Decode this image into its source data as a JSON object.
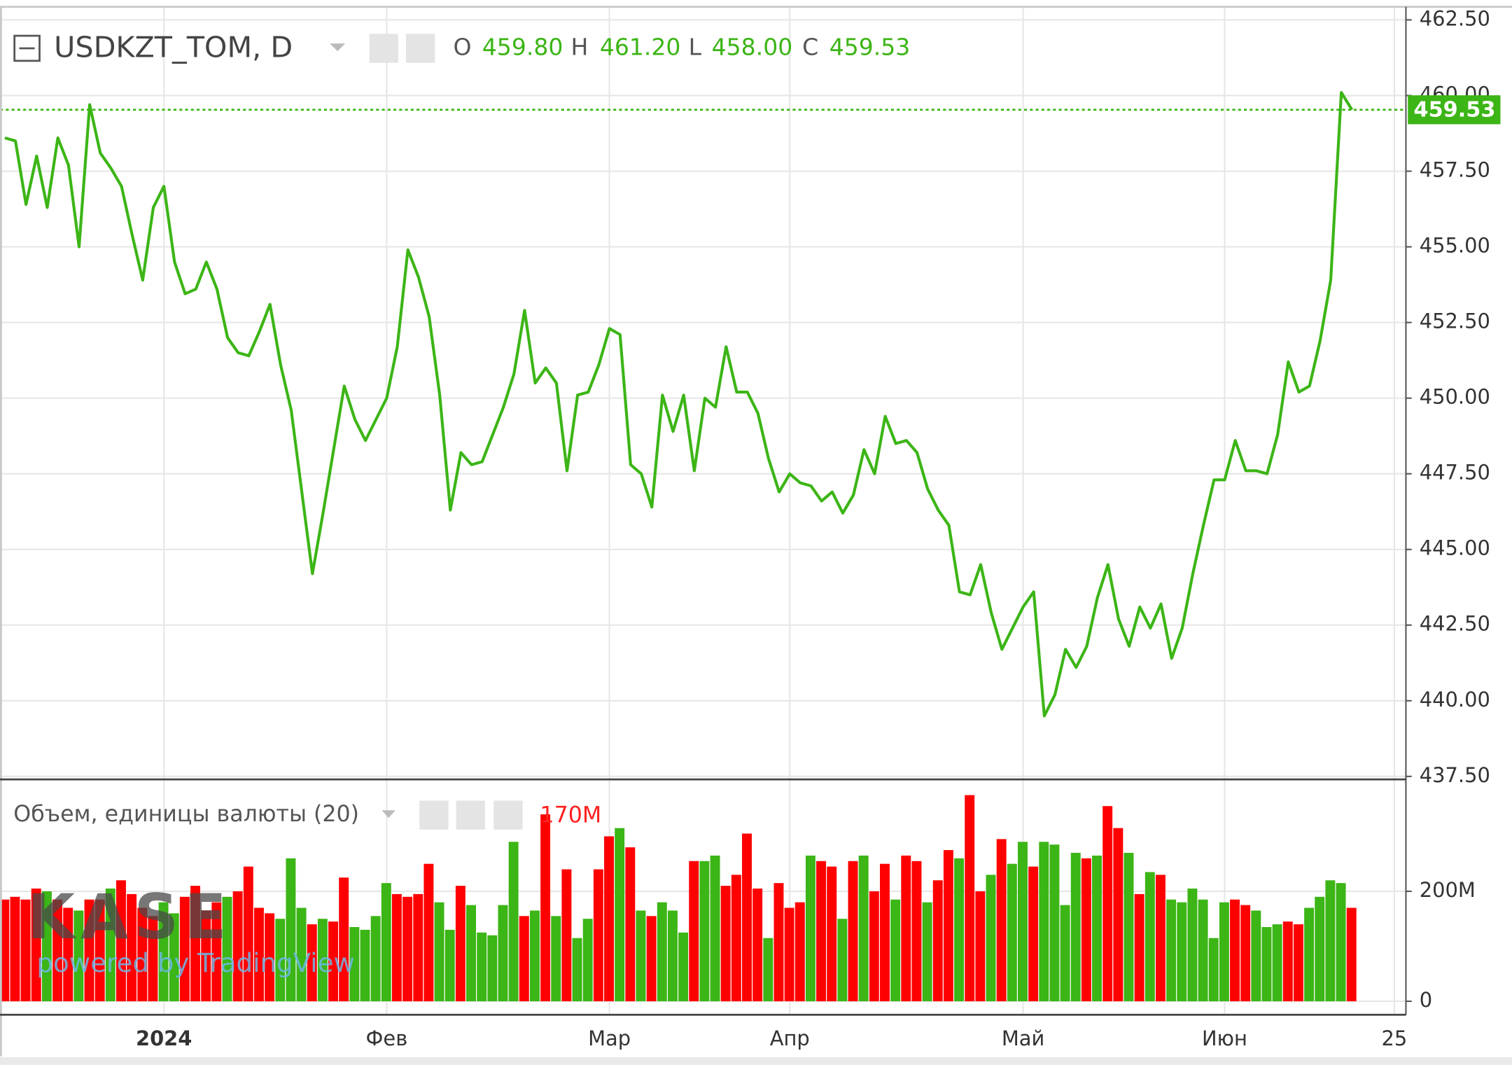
{
  "chart_data": [
    {
      "type": "line",
      "title": "USDKZT_TOM, D",
      "color": "#3cb516",
      "ohlc": [
        {
          "label": "O",
          "value": "459.80"
        },
        {
          "label": "H",
          "value": "461.20"
        },
        {
          "label": "L",
          "value": "458.00"
        },
        {
          "label": "C",
          "value": "459.53"
        }
      ],
      "categories": [
        null,
        null,
        null,
        null,
        null,
        null,
        null,
        null,
        null,
        null,
        null,
        null,
        null,
        null,
        null,
        "2024",
        null,
        null,
        null,
        null,
        null,
        null,
        null,
        null,
        null,
        null,
        null,
        null,
        null,
        null,
        null,
        null,
        null,
        null,
        null,
        null,
        "Фев",
        null,
        null,
        null,
        null,
        null,
        null,
        null,
        null,
        null,
        null,
        null,
        null,
        null,
        null,
        null,
        null,
        null,
        null,
        null,
        null,
        "Мар",
        null,
        null,
        null,
        null,
        null,
        null,
        null,
        null,
        null,
        null,
        null,
        null,
        null,
        null,
        null,
        null,
        "Апр",
        null,
        null,
        null,
        null,
        null,
        null,
        null,
        null,
        null,
        null,
        null,
        null,
        null,
        null,
        null,
        null,
        null,
        null,
        null,
        null,
        null,
        "Май",
        null,
        null,
        null,
        null,
        null,
        null,
        null,
        null,
        null,
        null,
        null,
        null,
        null,
        null,
        null,
        null,
        null,
        null,
        "Июн",
        null,
        null,
        null,
        null,
        null,
        null,
        null,
        null,
        null,
        null,
        null,
        null,
        null,
        null,
        null,
        "25"
      ],
      "values": [
        458.6,
        458.5,
        456.4,
        458.0,
        456.3,
        458.6,
        457.7,
        455.0,
        459.7,
        458.1,
        457.6,
        457.0,
        455.4,
        453.9,
        456.3,
        457.0,
        454.5,
        453.45,
        453.6,
        454.5,
        453.6,
        452.0,
        451.5,
        451.4,
        452.2,
        453.1,
        451.1,
        449.6,
        446.9,
        444.2,
        446.2,
        448.3,
        450.4,
        449.3,
        448.6,
        449.3,
        450.0,
        451.7,
        454.9,
        454.0,
        452.7,
        450.1,
        446.3,
        448.2,
        447.8,
        447.9,
        448.8,
        449.7,
        450.8,
        452.9,
        450.5,
        451.0,
        450.5,
        447.6,
        450.1,
        450.2,
        451.1,
        452.3,
        452.1,
        447.8,
        447.5,
        446.4,
        450.1,
        448.9,
        450.1,
        447.6,
        450.0,
        449.7,
        451.7,
        450.2,
        450.2,
        449.5,
        448.0,
        446.9,
        447.5,
        447.2,
        447.1,
        446.6,
        446.9,
        446.2,
        446.8,
        448.3,
        447.5,
        449.4,
        448.5,
        448.6,
        448.2,
        447.0,
        446.3,
        445.8,
        443.6,
        443.5,
        444.5,
        442.9,
        441.7,
        442.4,
        443.1,
        443.6,
        439.5,
        440.2,
        441.7,
        441.1,
        441.8,
        443.4,
        444.5,
        442.7,
        441.8,
        443.1,
        442.4,
        443.2,
        441.4,
        442.4,
        444.2,
        445.8,
        447.3,
        447.3,
        448.6,
        447.6,
        447.6,
        447.5,
        448.8,
        451.2,
        450.2,
        450.4,
        451.9,
        453.9,
        460.1,
        459.53,
        null,
        null,
        null,
        null
      ],
      "ylim": [
        437.4,
        462.9
      ],
      "yticks": [
        {
          "value": 437.5,
          "label": "437.50"
        },
        {
          "value": 440,
          "label": "440.00"
        },
        {
          "value": 442.5,
          "label": "442.50"
        },
        {
          "value": 445,
          "label": "445.00"
        },
        {
          "value": 447.5,
          "label": "447.50"
        },
        {
          "value": 450,
          "label": "450.00"
        },
        {
          "value": 452.5,
          "label": "452.50"
        },
        {
          "value": 455,
          "label": "455.00"
        },
        {
          "value": 457.5,
          "label": "457.50"
        },
        {
          "value": 460,
          "label": "460.00"
        },
        {
          "value": 462.5,
          "label": "462.50"
        }
      ],
      "grid": true
    },
    {
      "type": "bar",
      "title": "Объем, единицы валюты (20)",
      "header_value": "170M",
      "categories": [
        null,
        null,
        null,
        null,
        null,
        null,
        null,
        null,
        null,
        null,
        null,
        null,
        null,
        null,
        null,
        "2024",
        null,
        null,
        null,
        null,
        null,
        null,
        null,
        null,
        null,
        null,
        null,
        null,
        null,
        null,
        null,
        null,
        null,
        null,
        null,
        null,
        "Фев",
        null,
        null,
        null,
        null,
        null,
        null,
        null,
        null,
        null,
        null,
        null,
        null,
        null,
        null,
        null,
        null,
        null,
        null,
        null,
        null,
        "Мар",
        null,
        null,
        null,
        null,
        null,
        null,
        null,
        null,
        null,
        null,
        null,
        null,
        null,
        null,
        null,
        null,
        "Апр",
        null,
        null,
        null,
        null,
        null,
        null,
        null,
        null,
        null,
        null,
        null,
        null,
        null,
        null,
        null,
        null,
        null,
        null,
        null,
        null,
        null,
        "Май",
        null,
        null,
        null,
        null,
        null,
        null,
        null,
        null,
        null,
        null,
        null,
        null,
        null,
        null,
        null,
        null,
        null,
        null,
        "Июн",
        null,
        null,
        null,
        null,
        null,
        null,
        null,
        null,
        null,
        null,
        null,
        null,
        null,
        null,
        null,
        "25"
      ],
      "values": [
        185000000,
        190000000,
        185000000,
        205000000,
        200000000,
        185000000,
        170000000,
        165000000,
        185000000,
        185000000,
        205000000,
        220000000,
        195000000,
        170000000,
        155000000,
        180000000,
        160000000,
        190000000,
        210000000,
        165000000,
        180000000,
        190000000,
        200000000,
        245000000,
        170000000,
        160000000,
        150000000,
        260000000,
        170000000,
        140000000,
        150000000,
        145000000,
        225000000,
        135000000,
        130000000,
        155000000,
        215000000,
        195000000,
        190000000,
        195000000,
        250000000,
        180000000,
        130000000,
        210000000,
        175000000,
        125000000,
        120000000,
        175000000,
        290000000,
        155000000,
        165000000,
        340000000,
        155000000,
        240000000,
        115000000,
        150000000,
        240000000,
        300000000,
        315000000,
        280000000,
        165000000,
        155000000,
        180000000,
        165000000,
        125000000,
        255000000,
        255000000,
        265000000,
        210000000,
        230000000,
        305000000,
        205000000,
        115000000,
        215000000,
        170000000,
        180000000,
        265000000,
        255000000,
        245000000,
        150000000,
        255000000,
        265000000,
        200000000,
        250000000,
        185000000,
        265000000,
        255000000,
        180000000,
        220000000,
        275000000,
        260000000,
        375000000,
        200000000,
        230000000,
        295000000,
        250000000,
        290000000,
        245000000,
        290000000,
        285000000,
        175000000,
        270000000,
        260000000,
        265000000,
        355000000,
        315000000,
        270000000,
        195000000,
        235000000,
        230000000,
        185000000,
        180000000,
        205000000,
        185000000,
        115000000,
        180000000,
        185000000,
        175000000,
        165000000,
        135000000,
        140000000,
        145000000,
        140000000,
        170000000,
        190000000,
        220000000,
        215000000,
        170000000,
        null,
        null,
        null,
        null
      ],
      "colors": [
        "#ff0000",
        "#ff0000",
        "#ff0000",
        "#ff0000",
        "#3cb516",
        "#ff0000",
        "#ff0000",
        "#3cb516",
        "#ff0000",
        "#ff0000",
        "#3cb516",
        "#ff0000",
        "#ff0000",
        "#ff0000",
        "#ff0000",
        "#3cb516",
        "#3cb516",
        "#ff0000",
        "#ff0000",
        "#ff0000",
        "#ff0000",
        "#3cb516",
        "#ff0000",
        "#ff0000",
        "#ff0000",
        "#ff0000",
        "#3cb516",
        "#3cb516",
        "#3cb516",
        "#ff0000",
        "#3cb516",
        "#ff0000",
        "#ff0000",
        "#3cb516",
        "#3cb516",
        "#3cb516",
        "#3cb516",
        "#ff0000",
        "#ff0000",
        "#ff0000",
        "#ff0000",
        "#3cb516",
        "#3cb516",
        "#ff0000",
        "#3cb516",
        "#3cb516",
        "#3cb516",
        "#3cb516",
        "#3cb516",
        "#ff0000",
        "#3cb516",
        "#ff0000",
        "#3cb516",
        "#ff0000",
        "#3cb516",
        "#3cb516",
        "#ff0000",
        "#ff0000",
        "#3cb516",
        "#ff0000",
        "#3cb516",
        "#ff0000",
        "#3cb516",
        "#3cb516",
        "#3cb516",
        "#ff0000",
        "#3cb516",
        "#3cb516",
        "#ff0000",
        "#ff0000",
        "#ff0000",
        "#ff0000",
        "#3cb516",
        "#ff0000",
        "#ff0000",
        "#ff0000",
        "#3cb516",
        "#ff0000",
        "#ff0000",
        "#3cb516",
        "#ff0000",
        "#3cb516",
        "#ff0000",
        "#ff0000",
        "#3cb516",
        "#ff0000",
        "#ff0000",
        "#3cb516",
        "#ff0000",
        "#ff0000",
        "#3cb516",
        "#ff0000",
        "#ff0000",
        "#3cb516",
        "#ff0000",
        "#3cb516",
        "#3cb516",
        "#ff0000",
        "#3cb516",
        "#3cb516",
        "#3cb516",
        "#3cb516",
        "#ff0000",
        "#3cb516",
        "#ff0000",
        "#ff0000",
        "#3cb516",
        "#ff0000",
        "#3cb516",
        "#ff0000",
        "#3cb516",
        "#3cb516",
        "#3cb516",
        "#3cb516",
        "#3cb516",
        "#3cb516",
        "#ff0000",
        "#ff0000",
        "#3cb516",
        "#3cb516",
        "#3cb516",
        "#ff0000",
        "#ff0000",
        "#3cb516",
        "#3cb516",
        "#3cb516",
        "#3cb516",
        "#ff0000",
        null,
        null,
        null,
        null
      ],
      "ylim": [
        0,
        400000000
      ],
      "yticks": [
        0,
        {
          "value": 200000000,
          "label": "200M"
        }
      ],
      "grid": true
    }
  ],
  "watermark": {
    "logo": "KASE",
    "credit": "powered by TradingView"
  }
}
